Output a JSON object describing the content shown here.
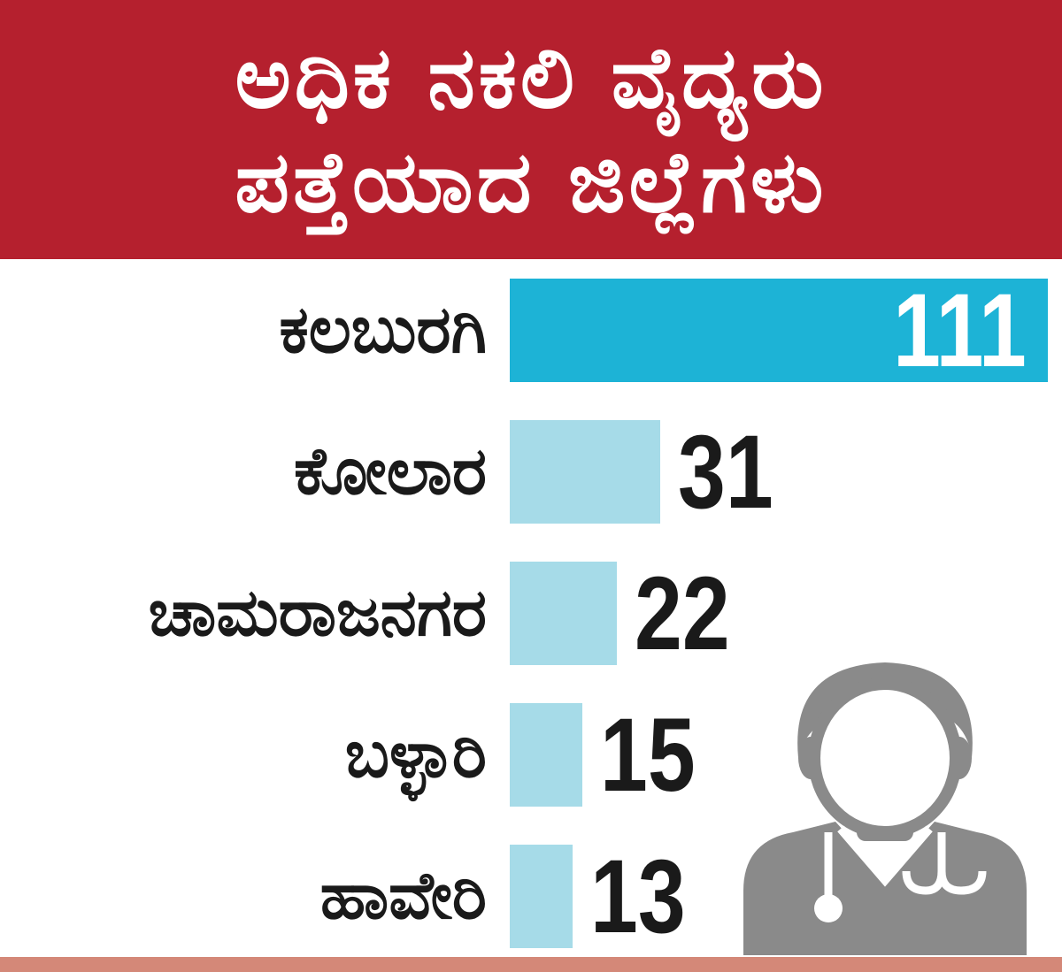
{
  "header": {
    "title_line1": "ಅಧಿಕ ನಕಲಿ ವೈದ್ಯರು",
    "title_line2": "ಪತ್ತೆಯಾದ ಜಿಲ್ಲೆಗಳು"
  },
  "colors": {
    "header_bg": "#b5202e",
    "primary_bar": "#1db3d6",
    "secondary_bar": "#a6dbe8",
    "icon": "#8a8a8a",
    "footer_strip": "#d48878"
  },
  "icon": {
    "name": "doctor-stethoscope-icon"
  },
  "chart_data": {
    "type": "bar",
    "orientation": "horizontal",
    "title": "ಅಧಿಕ ನಕಲಿ ವೈದ್ಯರು ಪತ್ತೆಯಾದ ಜಿಲ್ಲೆಗಳು",
    "categories": [
      "ಕಲಬುರಗಿ",
      "ಕೋಲಾರ",
      "ಚಾಮರಾಜನಗರ",
      "ಬಳ್ಳಾರಿ",
      "ಹಾವೇರಿ"
    ],
    "values": [
      111,
      31,
      22,
      15,
      13
    ],
    "value_labels": [
      "111",
      "31",
      "22",
      "15",
      "13"
    ],
    "xlim": [
      0,
      111
    ],
    "grid": false,
    "legend": "none"
  }
}
